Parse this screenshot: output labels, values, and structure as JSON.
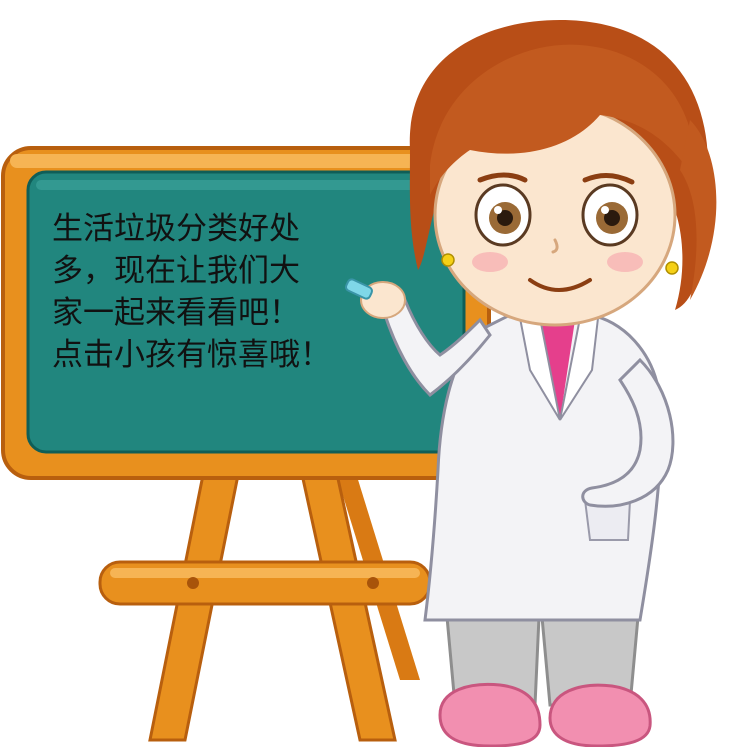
{
  "board": {
    "lines": [
      "生活垃圾分类好处",
      "多，现在让我们大",
      "家一起来看看吧！",
      "点击小孩有惊喜哦！"
    ]
  },
  "colors": {
    "frame": "#E8901E",
    "frame_dark": "#B85F0E",
    "chalkboard": "#21867E",
    "chalkboard_dark": "#126B63",
    "hair": "#C25A1F",
    "coat": "#F3F3F6",
    "shirt": "#E53F8C",
    "pants": "#C8C8C8",
    "shoes": "#F28FB0",
    "skin": "#FBE6CF"
  },
  "icons": [
    "teacher-illustration",
    "chalkboard-easel",
    "chalk-icon"
  ]
}
